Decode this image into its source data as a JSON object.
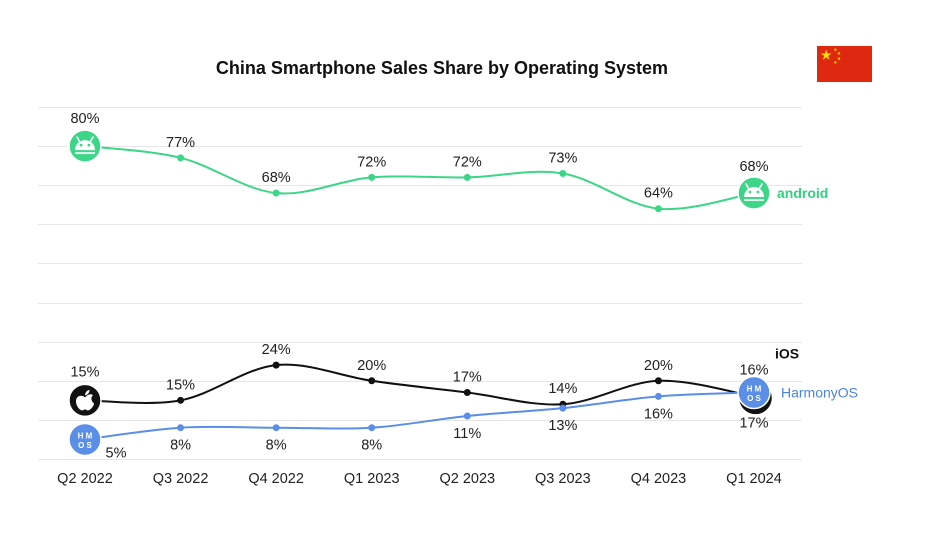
{
  "chart_data": {
    "type": "line",
    "title": "China Smartphone Sales Share by Operating System",
    "xlabel": "",
    "ylabel": "",
    "categories": [
      "Q2 2022",
      "Q3 2022",
      "Q4 2022",
      "Q1 2023",
      "Q2 2023",
      "Q3 2023",
      "Q4 2023",
      "Q1 2024"
    ],
    "ylim": [
      0,
      90
    ],
    "grid": true,
    "grid_step": 10,
    "value_suffix": "%",
    "series": [
      {
        "name": "android",
        "values": [
          80,
          77,
          68,
          72,
          72,
          73,
          64,
          68
        ],
        "color": "#3dd688",
        "label_color": "#34cf7f",
        "icon": "android-icon"
      },
      {
        "name": "iOS",
        "values": [
          15,
          15,
          24,
          20,
          17,
          14,
          20,
          16
        ],
        "color": "#111111",
        "label_color": "#111111",
        "icon": "apple-icon"
      },
      {
        "name": "HarmonyOS",
        "values": [
          5,
          8,
          8,
          8,
          11,
          13,
          16,
          17
        ],
        "color": "#5b8ee6",
        "label_color": "#4c84e2",
        "icon": "harmonyos-icon",
        "icon_text": [
          "H M",
          "O S"
        ]
      }
    ]
  },
  "flag": {
    "icon": "china-flag-icon",
    "field_color": "#de2910",
    "star_color": "#ffde00"
  }
}
